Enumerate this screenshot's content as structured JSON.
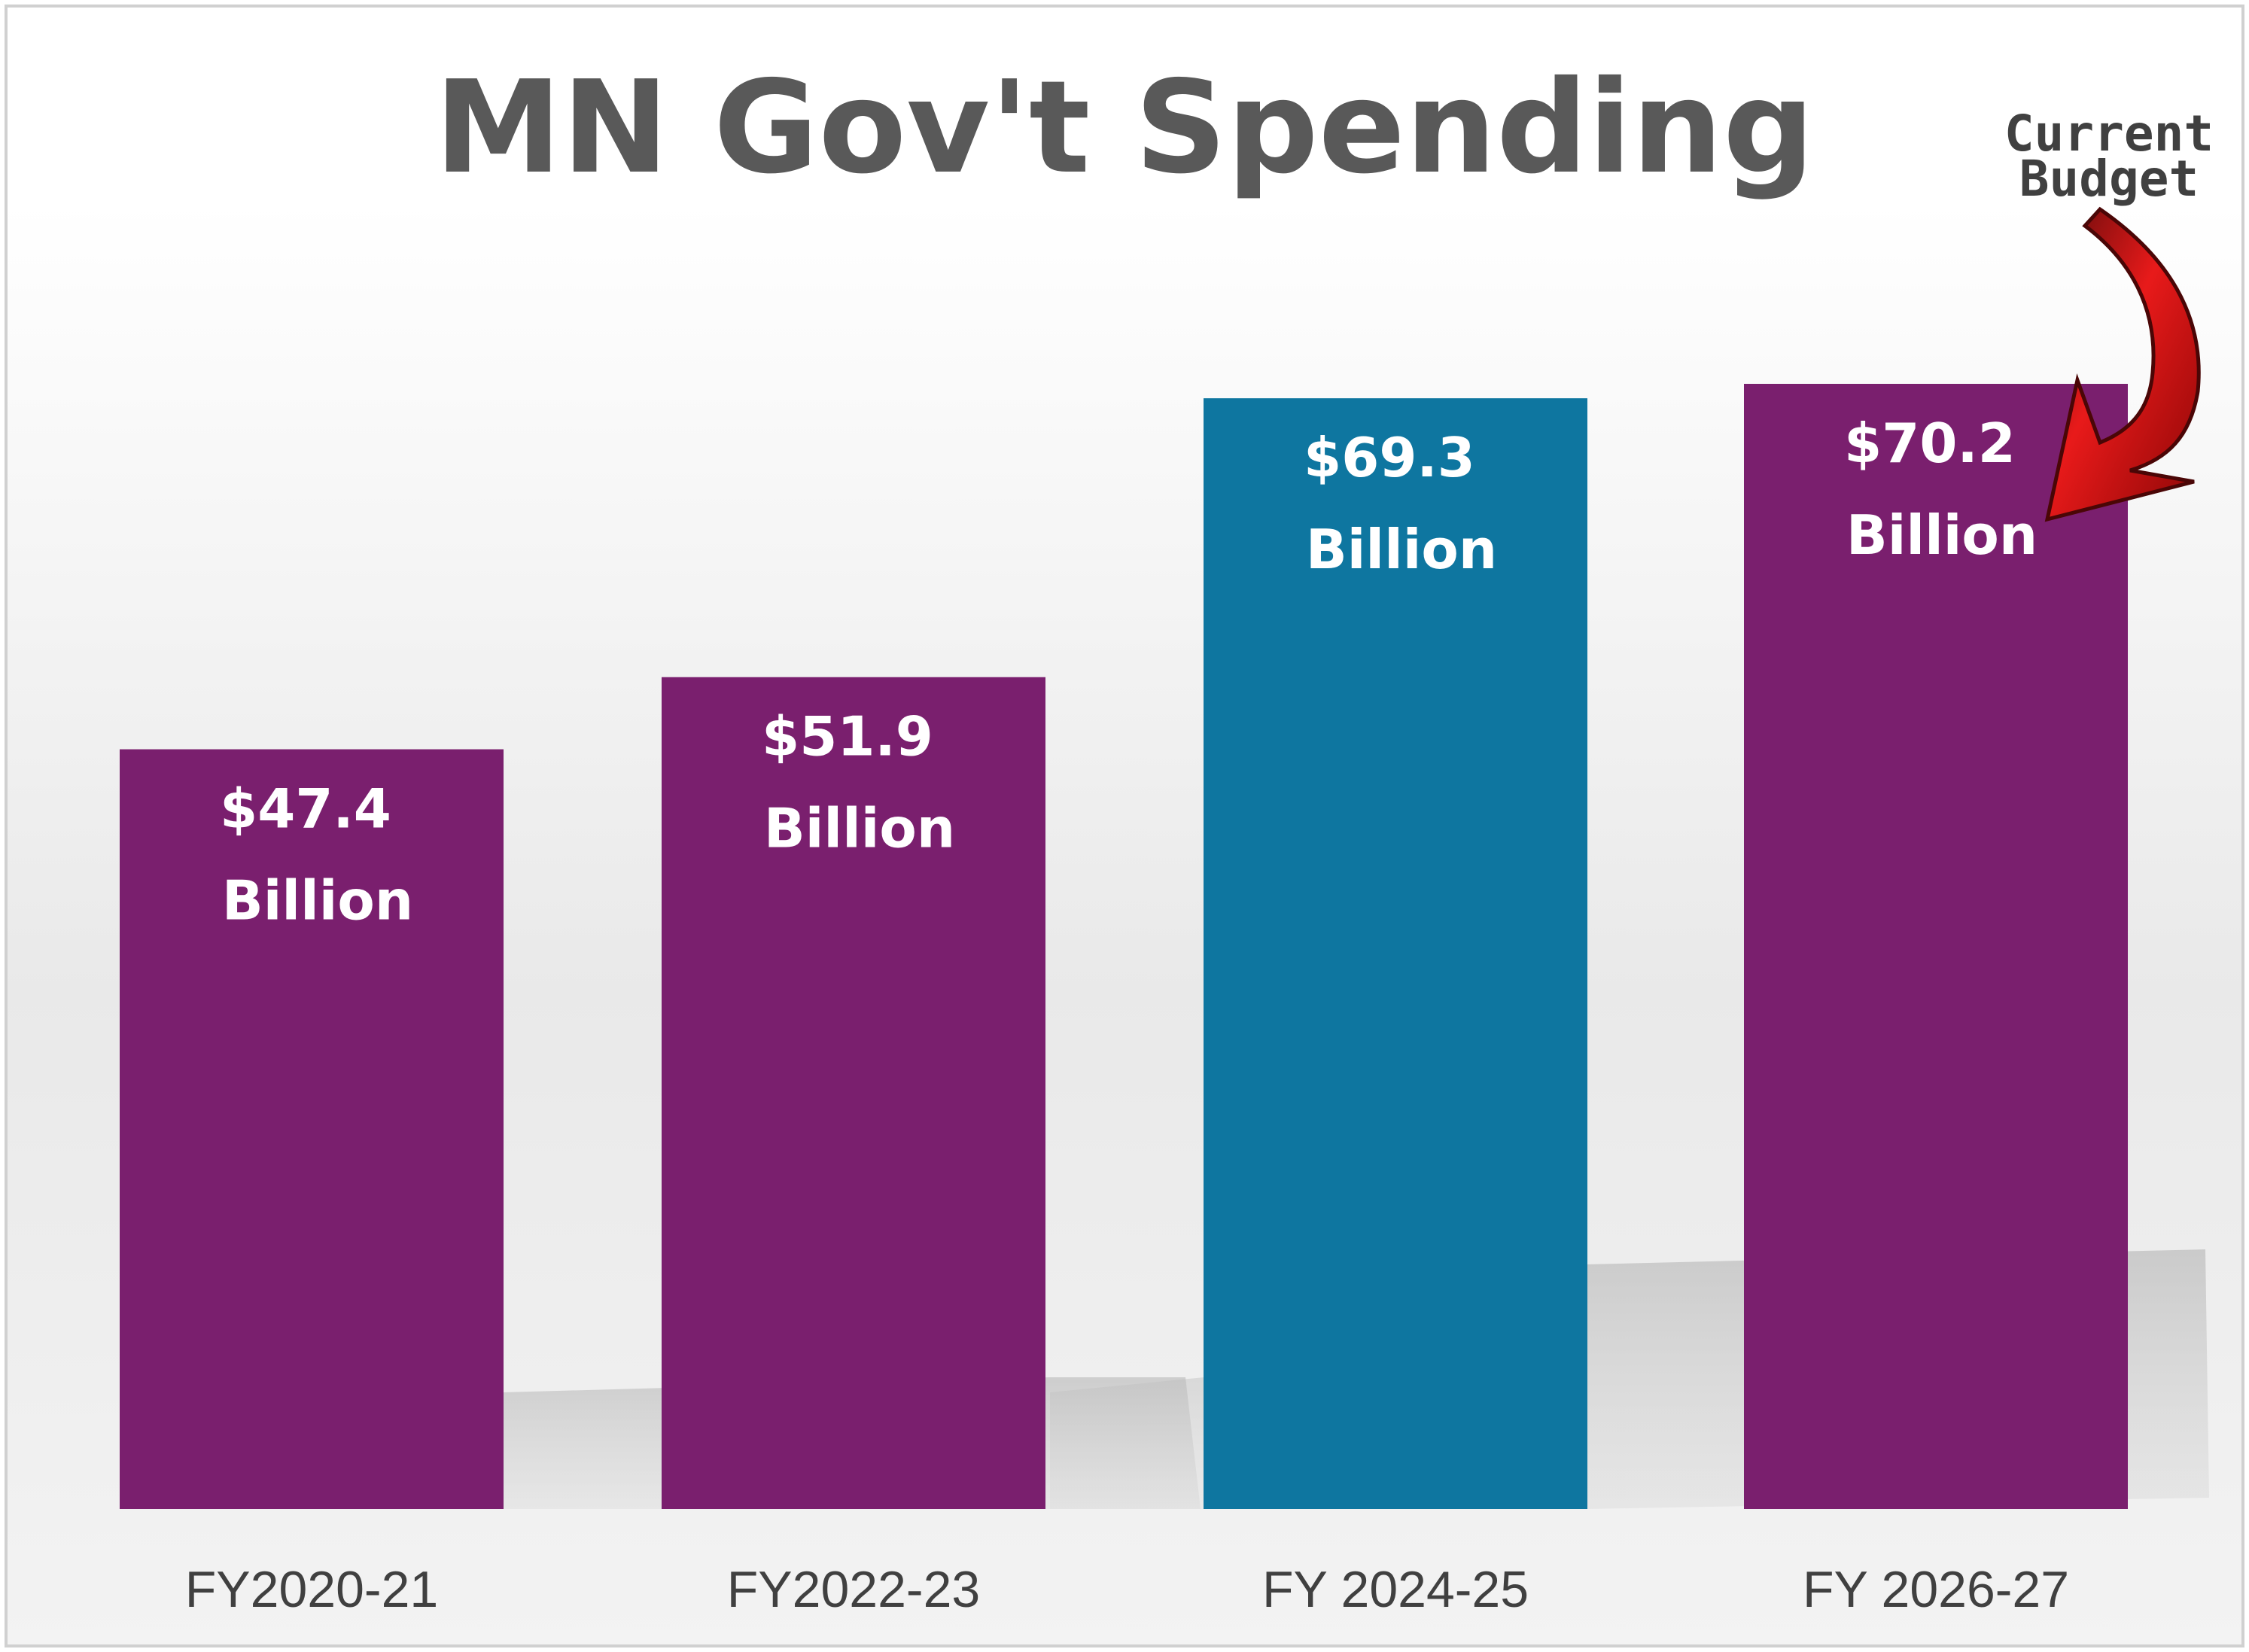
{
  "chart_data": {
    "type": "bar",
    "title": "MN Gov't Spending",
    "xlabel": "",
    "ylabel": "",
    "ylim": [
      0,
      80
    ],
    "grid": false,
    "legend": "none",
    "categories": [
      "FY2020-21",
      "FY2022-23",
      "FY 2024-25",
      "FY 2026-27"
    ],
    "values": [
      47.4,
      51.9,
      69.3,
      70.2
    ],
    "value_labels": [
      [
        "$47.4",
        "Billion"
      ],
      [
        "$51.9",
        "Billion"
      ],
      [
        "$69.3",
        "Billion"
      ],
      [
        "$70.2",
        "Billion"
      ]
    ],
    "bar_colors": [
      "#7A1F6E",
      "#7A1F6E",
      "#0E76A0",
      "#7A1F6E"
    ],
    "annotation": {
      "lines": [
        "Current",
        "Budget"
      ],
      "target_category": "FY 2026-27",
      "arrow_color": "#E01010"
    }
  }
}
